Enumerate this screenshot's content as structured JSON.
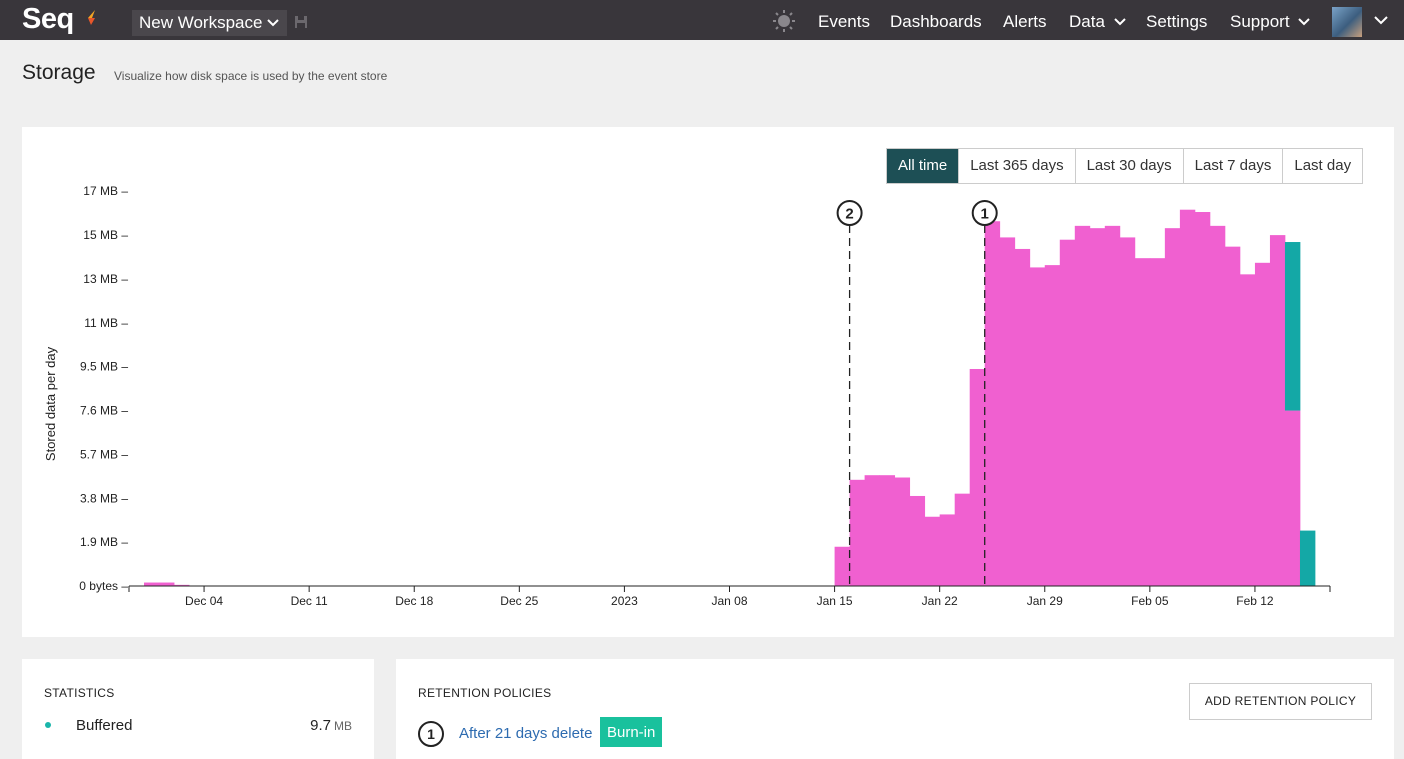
{
  "app": {
    "name": "Seq",
    "workspace": "New Workspace"
  },
  "nav": {
    "events": "Events",
    "dashboards": "Dashboards",
    "alerts": "Alerts",
    "data": "Data",
    "settings": "Settings",
    "support": "Support"
  },
  "page": {
    "title": "Storage",
    "subtitle": "Visualize how disk space is used by the event store"
  },
  "ranges": {
    "all": "All time",
    "y365": "Last 365 days",
    "d30": "Last 30 days",
    "d7": "Last 7 days",
    "d1": "Last day",
    "selected": "All time"
  },
  "chart_data": {
    "type": "bar",
    "ylabel": "Stored data per day",
    "y_unit": "MB",
    "ylim": [
      0,
      17.5
    ],
    "y_ticks": [
      {
        "value": 0,
        "label": "0 bytes"
      },
      {
        "value": 1.9,
        "label": "1.9 MB"
      },
      {
        "value": 3.8,
        "label": "3.8 MB"
      },
      {
        "value": 5.7,
        "label": "5.7 MB"
      },
      {
        "value": 7.6,
        "label": "7.6 MB"
      },
      {
        "value": 9.5,
        "label": "9.5 MB"
      },
      {
        "value": 11.4,
        "label": "11 MB"
      },
      {
        "value": 13.3,
        "label": "13 MB"
      },
      {
        "value": 15.2,
        "label": "15 MB"
      },
      {
        "value": 17.1,
        "label": "17 MB"
      }
    ],
    "x_ticks": [
      {
        "date": "2022-12-04",
        "label": "Dec 04"
      },
      {
        "date": "2022-12-11",
        "label": "Dec 11"
      },
      {
        "date": "2022-12-18",
        "label": "Dec 18"
      },
      {
        "date": "2022-12-25",
        "label": "Dec 25"
      },
      {
        "date": "2023-01-01",
        "label": "2023"
      },
      {
        "date": "2023-01-08",
        "label": "Jan 08"
      },
      {
        "date": "2023-01-15",
        "label": "Jan 15"
      },
      {
        "date": "2023-01-22",
        "label": "Jan 22"
      },
      {
        "date": "2023-01-29",
        "label": "Jan 29"
      },
      {
        "date": "2023-02-05",
        "label": "Feb 05"
      },
      {
        "date": "2023-02-12",
        "label": "Feb 12"
      }
    ],
    "x_range": [
      "2022-11-29",
      "2023-02-17"
    ],
    "series": [
      {
        "name": "Stored",
        "color": "#f060d0",
        "points": [
          {
            "date": "2022-11-30",
            "value": 0.15
          },
          {
            "date": "2022-12-01",
            "value": 0.15
          },
          {
            "date": "2022-12-02",
            "value": 0.05
          },
          {
            "date": "2023-01-15",
            "value": 1.7
          },
          {
            "date": "2023-01-16",
            "value": 4.6
          },
          {
            "date": "2023-01-17",
            "value": 4.8
          },
          {
            "date": "2023-01-18",
            "value": 4.8
          },
          {
            "date": "2023-01-19",
            "value": 4.7
          },
          {
            "date": "2023-01-20",
            "value": 3.9
          },
          {
            "date": "2023-01-21",
            "value": 3.0
          },
          {
            "date": "2023-01-22",
            "value": 3.1
          },
          {
            "date": "2023-01-23",
            "value": 4.0
          },
          {
            "date": "2023-01-24",
            "value": 9.4
          },
          {
            "date": "2023-01-25",
            "value": 15.8
          },
          {
            "date": "2023-01-26",
            "value": 15.1
          },
          {
            "date": "2023-01-27",
            "value": 14.6
          },
          {
            "date": "2023-01-28",
            "value": 13.8
          },
          {
            "date": "2023-01-29",
            "value": 13.9
          },
          {
            "date": "2023-01-30",
            "value": 15.0
          },
          {
            "date": "2023-01-31",
            "value": 15.6
          },
          {
            "date": "2023-02-01",
            "value": 15.5
          },
          {
            "date": "2023-02-02",
            "value": 15.6
          },
          {
            "date": "2023-02-03",
            "value": 15.1
          },
          {
            "date": "2023-02-04",
            "value": 14.2
          },
          {
            "date": "2023-02-05",
            "value": 14.2
          },
          {
            "date": "2023-02-06",
            "value": 15.5
          },
          {
            "date": "2023-02-07",
            "value": 16.3
          },
          {
            "date": "2023-02-08",
            "value": 16.2
          },
          {
            "date": "2023-02-09",
            "value": 15.6
          },
          {
            "date": "2023-02-10",
            "value": 14.7
          },
          {
            "date": "2023-02-11",
            "value": 13.5
          },
          {
            "date": "2023-02-12",
            "value": 14.0
          },
          {
            "date": "2023-02-13",
            "value": 15.2
          },
          {
            "date": "2023-02-14",
            "value": 7.6
          }
        ]
      },
      {
        "name": "Buffered",
        "color": "#14a8a6",
        "points": [
          {
            "date": "2023-02-14",
            "value": 7.3,
            "base": 7.6
          },
          {
            "date": "2023-02-15",
            "value": 2.4,
            "base": 0
          }
        ]
      }
    ],
    "annotations": [
      {
        "label": "2",
        "date": "2023-01-16"
      },
      {
        "label": "1",
        "date": "2023-01-25"
      }
    ]
  },
  "statistics": {
    "title": "STATISTICS",
    "buffered_label": "Buffered",
    "buffered_value": "9.7",
    "buffered_unit": "MB",
    "buffered_color": "#1ab5aa"
  },
  "retention": {
    "title": "RETENTION POLICIES",
    "add_label": "ADD RETENTION POLICY",
    "policy_number": "1",
    "policy_text": "After 21 days delete",
    "policy_badge": "Burn-in",
    "badge_color": "#19c19d"
  }
}
